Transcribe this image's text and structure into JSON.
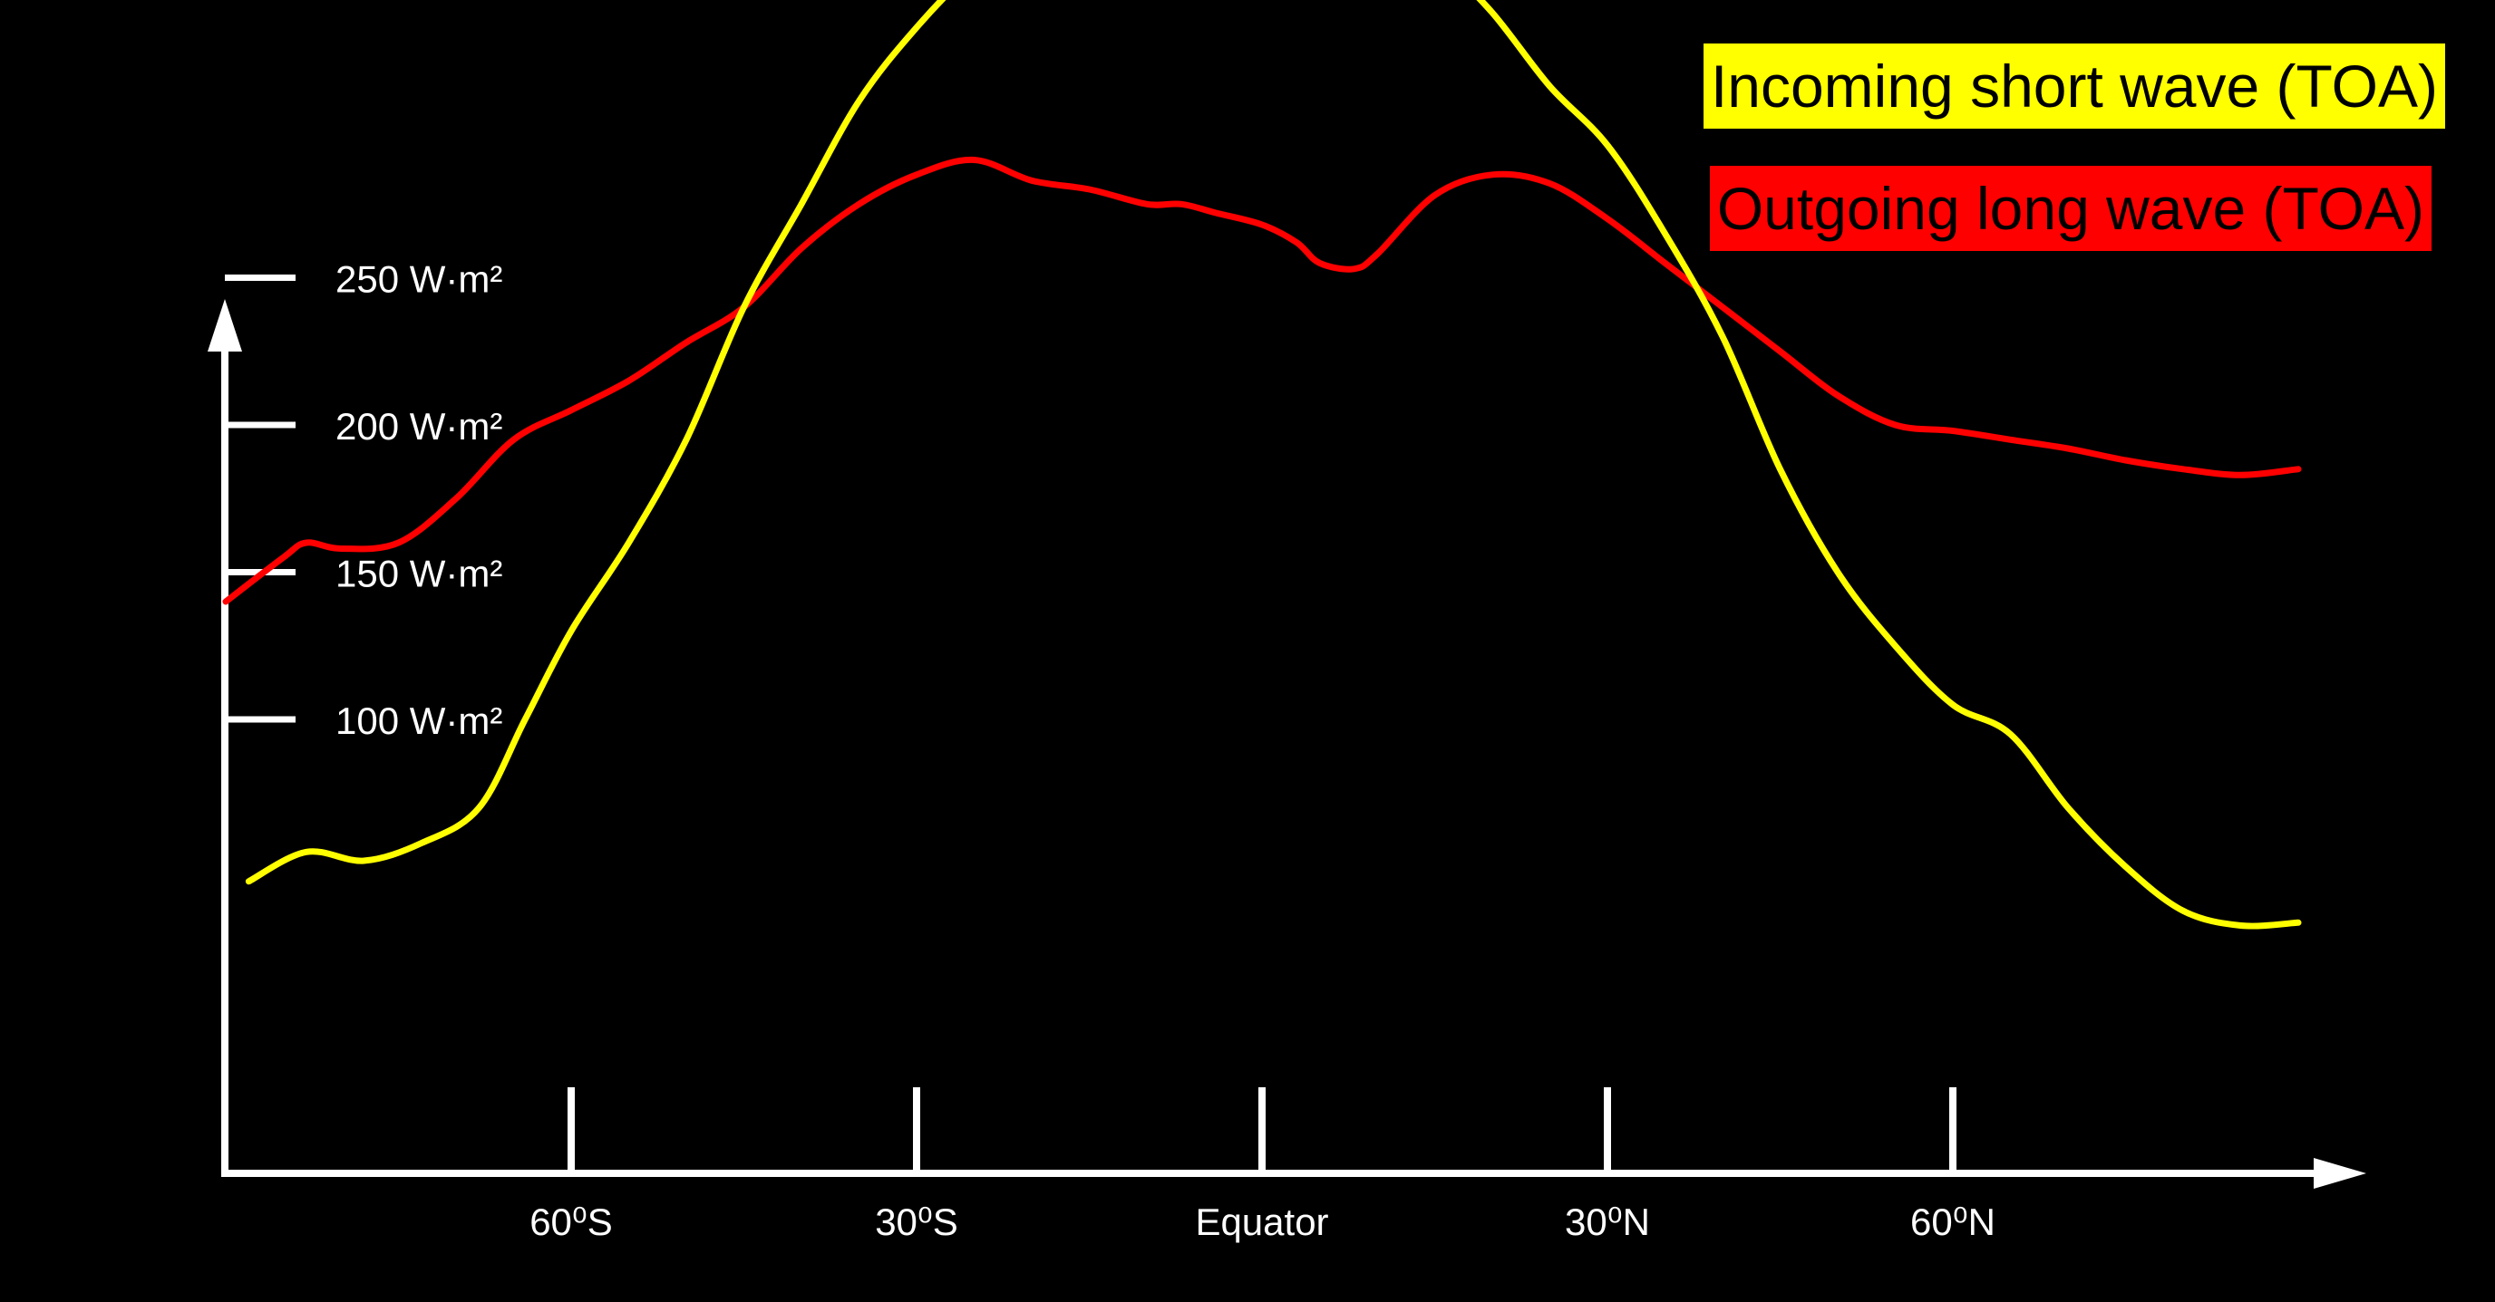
{
  "legend": {
    "shortwave_label": "Incoming short wave (TOA)",
    "longwave_label": "Outgoing long wave (TOA)"
  },
  "colors": {
    "background": "#000000",
    "axis": "#ffffff",
    "shortwave": "#ffff00",
    "longwave": "#ff0000"
  },
  "chart_data": {
    "type": "line",
    "title": "",
    "xlabel": "",
    "ylabel": "",
    "x_ticks": [
      {
        "x": -60,
        "label": "60⁰S"
      },
      {
        "x": -30,
        "label": "30⁰S"
      },
      {
        "x": 0,
        "label": "Equator"
      },
      {
        "x": 30,
        "label": "30⁰N"
      },
      {
        "x": 60,
        "label": "60⁰N"
      }
    ],
    "y_ticks": [
      {
        "y": 100,
        "label": "100 W·m²"
      },
      {
        "y": 150,
        "label": "150 W·m²"
      },
      {
        "y": 200,
        "label": "200 W·m²"
      },
      {
        "y": 250,
        "label": "250 W·m²"
      }
    ],
    "series": [
      {
        "name": "Incoming short wave (TOA)",
        "color": "#ffff00",
        "x": [
          -88,
          -83,
          -78,
          -73,
          -68,
          -64,
          -60,
          -55,
          -50,
          -45,
          -40,
          -35,
          -30,
          -25,
          -20,
          -15,
          -10,
          -8,
          -5,
          -3,
          -1,
          1,
          3,
          5,
          8,
          10,
          15,
          20,
          25,
          30,
          35,
          40,
          45,
          50,
          55,
          60,
          65,
          70,
          75,
          80,
          85,
          90
        ],
        "y": [
          45,
          55,
          52,
          58,
          70,
          100,
          130,
          160,
          195,
          240,
          275,
          310,
          335,
          355,
          370,
          380,
          385,
          387,
          391,
          390,
          383,
          372,
          370,
          380,
          383,
          380,
          360,
          340,
          315,
          295,
          265,
          230,
          185,
          150,
          125,
          105,
          95,
          70,
          50,
          35,
          30,
          31
        ]
      },
      {
        "name": "Outgoing long wave (TOA)",
        "color": "#ff0000",
        "x": [
          -90,
          -85,
          -83,
          -80,
          -75,
          -70,
          -65,
          -60,
          -55,
          -50,
          -45,
          -40,
          -35,
          -30,
          -25,
          -20,
          -15,
          -10,
          -7,
          -4,
          0,
          3,
          5,
          8,
          10,
          15,
          20,
          25,
          30,
          35,
          40,
          45,
          50,
          55,
          60,
          65,
          70,
          75,
          80,
          85,
          90
        ],
        "y": [
          140,
          155,
          160,
          158,
          160,
          175,
          195,
          205,
          215,
          228,
          240,
          260,
          275,
          285,
          290,
          283,
          280,
          275,
          275,
          272,
          268,
          262,
          255,
          253,
          258,
          278,
          285,
          282,
          270,
          255,
          240,
          225,
          210,
          200,
          198,
          195,
          192,
          188,
          185,
          183,
          185
        ]
      }
    ]
  }
}
